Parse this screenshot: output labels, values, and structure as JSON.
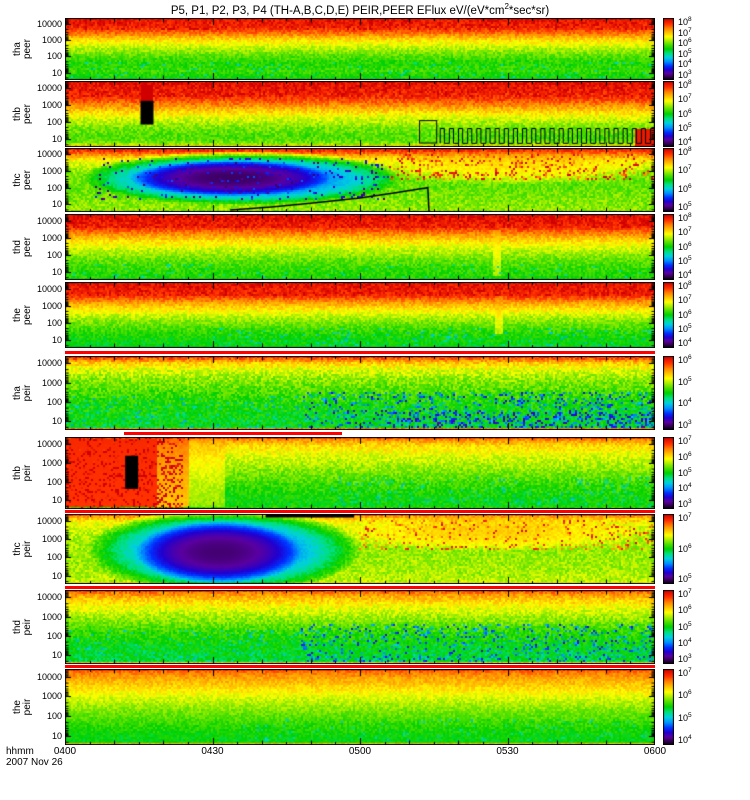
{
  "window": {
    "title_pre": "P5, P1, P2, P3, P4 (TH-A,B,C,D,E) PEIR,PEER EFlux eV/(eV*cm",
    "title_sup": "2",
    "title_post": "*sec*sr)"
  },
  "bottom": {
    "time_label": "hhmm",
    "date_label": "2007 Nov 26"
  },
  "chart_data": {
    "type": "heatmap",
    "title": "P5, P1, P2, P3, P4 (TH-A,B,C,D,E) PEIR,PEER EFlux eV/(eV*cm2*sec*sr)",
    "x_axis": {
      "labels": [
        "0400",
        "0430",
        "0500",
        "0530",
        "0600"
      ],
      "format": "hhmm",
      "date": "2007 Nov 26"
    },
    "y_axis": {
      "ticks": [
        "10000",
        "1000",
        "100",
        "10"
      ],
      "scale": "log"
    },
    "colorbar_base": "10",
    "colormap": [
      [
        0.0,
        "#000010"
      ],
      [
        0.04,
        "#30004a"
      ],
      [
        0.1,
        "#5a00a0"
      ],
      [
        0.16,
        "#2000d0"
      ],
      [
        0.22,
        "#0030ff"
      ],
      [
        0.29,
        "#0090ff"
      ],
      [
        0.36,
        "#00d0e0"
      ],
      [
        0.43,
        "#00e080"
      ],
      [
        0.5,
        "#00d000"
      ],
      [
        0.57,
        "#50e000"
      ],
      [
        0.64,
        "#b0f000"
      ],
      [
        0.7,
        "#ffff00"
      ],
      [
        0.77,
        "#ffc000"
      ],
      [
        0.84,
        "#ff8000"
      ],
      [
        0.91,
        "#ff3000"
      ],
      [
        1.0,
        "#d00000"
      ]
    ],
    "panels": [
      {
        "id": "tha-peer",
        "label_lines": [
          "tha",
          "peer"
        ],
        "colorbar_exponents": [
          8,
          7,
          6,
          5,
          4,
          3
        ],
        "noise": 0.045,
        "profile": [
          [
            0,
            0.96
          ],
          [
            0.15,
            0.93
          ],
          [
            0.25,
            0.85
          ],
          [
            0.35,
            0.74
          ],
          [
            0.48,
            0.65
          ],
          [
            0.6,
            0.58
          ],
          [
            0.72,
            0.53
          ],
          [
            0.85,
            0.55
          ],
          [
            1,
            0.5
          ]
        ],
        "features": [
          {
            "type": "speckle",
            "x0": 0,
            "x1": 1,
            "y0": 0,
            "y1": 0.18,
            "v": 1.0,
            "density": 0.25
          },
          {
            "type": "speckle",
            "x0": 0,
            "x1": 1,
            "y0": 0.72,
            "y1": 0.99,
            "v": 0.45,
            "density": 0.1
          }
        ]
      },
      {
        "id": "thb-peer",
        "label_lines": [
          "thb",
          "peer"
        ],
        "colorbar_exponents": [
          8,
          7,
          6,
          5,
          4
        ],
        "noise": 0.05,
        "profile": [
          [
            0,
            0.97
          ],
          [
            0.25,
            0.92
          ],
          [
            0.4,
            0.8
          ],
          [
            0.55,
            0.68
          ],
          [
            0.7,
            0.6
          ],
          [
            0.85,
            0.56
          ],
          [
            0.95,
            0.6
          ],
          [
            1,
            0.8
          ]
        ],
        "features": [
          {
            "type": "speckle",
            "x0": 0,
            "x1": 1,
            "y0": 0,
            "y1": 0.25,
            "v": 1.0,
            "density": 0.25
          },
          {
            "type": "rect",
            "x0": 0.128,
            "x1": 0.15,
            "y0": 0.05,
            "y1": 0.3,
            "v": 1.0
          },
          {
            "type": "rect",
            "x0": 0.965,
            "x1": 1,
            "y0": 0.72,
            "y1": 1,
            "v": 0.95
          },
          {
            "type": "bar",
            "x0": 0.128,
            "x1": 0.15,
            "y0": 0.3,
            "y1": 0.66,
            "color": "#000000"
          },
          {
            "type": "outline",
            "x0": 0.601,
            "x1": 0.63,
            "y0": 0.6,
            "y1": 0.94
          },
          {
            "type": "sqwave",
            "x0": 0.636,
            "x1": 0.998,
            "period": 0.0155,
            "duty": 0.45,
            "ytop": 0.72,
            "ybot": 0.945
          }
        ]
      },
      {
        "id": "thc-peer",
        "label_lines": [
          "thc",
          "peer"
        ],
        "colorbar_exponents": [
          8,
          7,
          6,
          5
        ],
        "noise": 0.05,
        "profile": [
          [
            0,
            0.95
          ],
          [
            0.06,
            0.9
          ],
          [
            0.13,
            0.78
          ],
          [
            0.22,
            0.68
          ],
          [
            0.4,
            0.6
          ],
          [
            0.6,
            0.58
          ],
          [
            0.8,
            0.6
          ],
          [
            1,
            0.62
          ]
        ],
        "features": [
          {
            "type": "blob",
            "cx": 0.3,
            "cy": 0.47,
            "rx": 0.27,
            "ry": 0.42,
            "v": 0.18,
            "alpha": 0.95
          },
          {
            "type": "blob",
            "cx": 0.28,
            "cy": 0.47,
            "rx": 0.17,
            "ry": 0.28,
            "v": 0.05,
            "alpha": 0.95
          },
          {
            "type": "blob",
            "cx": 0.76,
            "cy": 0.3,
            "rx": 0.24,
            "ry": 0.26,
            "v": 0.8,
            "alpha": 0.55
          },
          {
            "type": "speckle",
            "x0": 0.55,
            "x1": 1,
            "y0": 0.08,
            "y1": 0.5,
            "v": 0.9,
            "density": 0.18
          },
          {
            "type": "speckle",
            "x0": 0.05,
            "x1": 0.55,
            "y0": 0.15,
            "y1": 0.8,
            "v": 0.15,
            "density": 0.08
          },
          {
            "type": "trace",
            "pts": [
              [
                0.28,
                0.97
              ],
              [
                0.35,
                0.92
              ],
              [
                0.42,
                0.86
              ],
              [
                0.5,
                0.78
              ],
              [
                0.56,
                0.7
              ],
              [
                0.6,
                0.64
              ],
              [
                0.615,
                0.62
              ],
              [
                0.617,
                0.995
              ]
            ]
          }
        ]
      },
      {
        "id": "thd-peer",
        "label_lines": [
          "thd",
          "peer"
        ],
        "colorbar_exponents": [
          8,
          7,
          6,
          5,
          4
        ],
        "noise": 0.045,
        "profile": [
          [
            0,
            0.97
          ],
          [
            0.2,
            0.93
          ],
          [
            0.3,
            0.83
          ],
          [
            0.42,
            0.73
          ],
          [
            0.55,
            0.65
          ],
          [
            0.7,
            0.58
          ],
          [
            0.85,
            0.54
          ],
          [
            1,
            0.52
          ]
        ],
        "features": [
          {
            "type": "speckle",
            "x0": 0,
            "x1": 1,
            "y0": 0,
            "y1": 0.22,
            "v": 1.0,
            "density": 0.3
          },
          {
            "type": "rect",
            "x0": 0.725,
            "x1": 0.74,
            "y0": 0.25,
            "y1": 0.95,
            "v": 0.75,
            "alpha": 0.5
          },
          {
            "type": "speckle",
            "x0": 0,
            "x1": 1,
            "y0": 0.75,
            "y1": 0.99,
            "v": 0.47,
            "density": 0.08
          }
        ]
      },
      {
        "id": "the-peer",
        "label_lines": [
          "the",
          "peer"
        ],
        "colorbar_exponents": [
          8,
          7,
          6,
          5,
          4
        ],
        "noise": 0.045,
        "profile": [
          [
            0,
            0.96
          ],
          [
            0.2,
            0.93
          ],
          [
            0.3,
            0.82
          ],
          [
            0.42,
            0.72
          ],
          [
            0.55,
            0.63
          ],
          [
            0.7,
            0.56
          ],
          [
            0.85,
            0.51
          ],
          [
            1,
            0.49
          ]
        ],
        "features": [
          {
            "type": "speckle",
            "x0": 0,
            "x1": 1,
            "y0": 0,
            "y1": 0.2,
            "v": 1.0,
            "density": 0.25
          },
          {
            "type": "rect",
            "x0": 0.728,
            "x1": 0.742,
            "y0": 0.2,
            "y1": 0.8,
            "v": 0.78,
            "alpha": 0.45
          },
          {
            "type": "speckle",
            "x0": 0.25,
            "x1": 1,
            "y0": 0.7,
            "y1": 0.99,
            "v": 0.42,
            "density": 0.1
          }
        ]
      },
      {
        "id": "tha-peir",
        "label_lines": [
          "tha",
          "peir"
        ],
        "colorbar_exponents": [
          6,
          5,
          4,
          3
        ],
        "noise": 0.06,
        "profile": [
          [
            0,
            0.94
          ],
          [
            0.035,
            0.88
          ],
          [
            0.09,
            0.76
          ],
          [
            0.18,
            0.68
          ],
          [
            0.3,
            0.62
          ],
          [
            0.45,
            0.57
          ],
          [
            0.6,
            0.53
          ],
          [
            0.8,
            0.5
          ],
          [
            0.96,
            0.49
          ],
          [
            0.975,
            0.7
          ],
          [
            1,
            0.95
          ]
        ],
        "features": [
          {
            "type": "speckle",
            "x0": 0.4,
            "x1": 1,
            "y0": 0.5,
            "y1": 0.96,
            "v": 0.27,
            "density": 0.18
          },
          {
            "type": "speckle",
            "x0": 0,
            "x1": 0.4,
            "y0": 0.55,
            "y1": 0.96,
            "v": 0.4,
            "density": 0.1
          },
          {
            "type": "speckle",
            "x0": 0.55,
            "x1": 1,
            "y0": 0.75,
            "y1": 0.96,
            "v": 0.2,
            "density": 0.22
          }
        ]
      },
      {
        "id": "thb-peir",
        "label_lines": [
          "thb",
          "peir"
        ],
        "colorbar_exponents": [
          7,
          6,
          5,
          4,
          3
        ],
        "noise": 0.05,
        "profile": [
          [
            0,
            0.93
          ],
          [
            0.04,
            0.82
          ],
          [
            0.12,
            0.74
          ],
          [
            0.25,
            0.68
          ],
          [
            0.4,
            0.63
          ],
          [
            0.55,
            0.58
          ],
          [
            0.7,
            0.54
          ],
          [
            0.85,
            0.51
          ],
          [
            0.97,
            0.5
          ],
          [
            1,
            0.6
          ]
        ],
        "features": [
          {
            "type": "rect",
            "x0": 0,
            "x1": 0.155,
            "y0": 0.02,
            "y1": 0.98,
            "v": 0.93,
            "alpha": 0.95
          },
          {
            "type": "rect",
            "x0": 0.155,
            "x1": 0.21,
            "y0": 0.02,
            "y1": 0.98,
            "v": 0.88,
            "alpha": 0.7
          },
          {
            "type": "rect",
            "x0": 0.21,
            "x1": 0.27,
            "y0": 0.02,
            "y1": 0.98,
            "v": 0.8,
            "alpha": 0.4
          },
          {
            "type": "speckle",
            "x0": 0,
            "x1": 0.2,
            "y0": 0,
            "y1": 1,
            "v": 1.0,
            "density": 0.25
          },
          {
            "type": "speckle",
            "x0": 0.45,
            "x1": 1,
            "y0": 0.55,
            "y1": 0.97,
            "v": 0.42,
            "density": 0.12
          },
          {
            "type": "bar",
            "x0": 0.102,
            "x1": 0.124,
            "y0": 0.26,
            "y1": 0.72,
            "color": "#000000"
          }
        ]
      },
      {
        "id": "thc-peir",
        "label_lines": [
          "thc",
          "peir"
        ],
        "colorbar_exponents": [
          7,
          6,
          5
        ],
        "noise": 0.05,
        "profile": [
          [
            0,
            0.93
          ],
          [
            0.04,
            0.8
          ],
          [
            0.12,
            0.7
          ],
          [
            0.3,
            0.64
          ],
          [
            0.55,
            0.62
          ],
          [
            0.8,
            0.63
          ],
          [
            0.97,
            0.65
          ],
          [
            1,
            0.75
          ]
        ],
        "features": [
          {
            "type": "blob",
            "cx": 0.27,
            "cy": 0.52,
            "rx": 0.23,
            "ry": 0.62,
            "v": 0.2,
            "alpha": 0.95
          },
          {
            "type": "blob",
            "cx": 0.26,
            "cy": 0.55,
            "rx": 0.14,
            "ry": 0.45,
            "v": 0.06,
            "alpha": 0.95
          },
          {
            "type": "blob",
            "cx": 0.72,
            "cy": 0.28,
            "rx": 0.26,
            "ry": 0.24,
            "v": 0.82,
            "alpha": 0.6
          },
          {
            "type": "speckle",
            "x0": 0.5,
            "x1": 1,
            "y0": 0.08,
            "y1": 0.5,
            "v": 0.88,
            "density": 0.15
          },
          {
            "type": "bar",
            "x0": 0.34,
            "x1": 0.49,
            "y0": 0,
            "y1": 0.05,
            "color": "#000000"
          }
        ]
      },
      {
        "id": "thd-peir",
        "label_lines": [
          "thd",
          "peir"
        ],
        "colorbar_exponents": [
          7,
          6,
          5,
          4,
          3
        ],
        "noise": 0.05,
        "profile": [
          [
            0,
            0.93
          ],
          [
            0.04,
            0.84
          ],
          [
            0.1,
            0.78
          ],
          [
            0.22,
            0.7
          ],
          [
            0.38,
            0.62
          ],
          [
            0.55,
            0.55
          ],
          [
            0.75,
            0.5
          ],
          [
            0.96,
            0.47
          ],
          [
            1,
            0.9
          ]
        ],
        "features": [
          {
            "type": "speckle",
            "x0": 0.4,
            "x1": 1,
            "y0": 0.45,
            "y1": 0.96,
            "v": 0.28,
            "density": 0.18
          },
          {
            "type": "speckle",
            "x0": 0,
            "x1": 0.4,
            "y0": 0.55,
            "y1": 0.96,
            "v": 0.42,
            "density": 0.1
          }
        ]
      },
      {
        "id": "the-peir",
        "label_lines": [
          "the",
          "peir"
        ],
        "colorbar_exponents": [
          7,
          6,
          5,
          4
        ],
        "noise": 0.04,
        "profile": [
          [
            0,
            0.93
          ],
          [
            0.04,
            0.85
          ],
          [
            0.12,
            0.8
          ],
          [
            0.25,
            0.74
          ],
          [
            0.4,
            0.66
          ],
          [
            0.55,
            0.6
          ],
          [
            0.7,
            0.55
          ],
          [
            0.85,
            0.51
          ],
          [
            0.96,
            0.49
          ],
          [
            1,
            0.9
          ]
        ],
        "features": [
          {
            "type": "speckle",
            "x0": 0.3,
            "x1": 1,
            "y0": 0.65,
            "y1": 0.96,
            "v": 0.44,
            "density": 0.08
          }
        ]
      }
    ],
    "separators": [
      {
        "above_panel_index": 5,
        "x0": 0,
        "x1": 1
      },
      {
        "above_panel_index": 6,
        "x0": 0.1,
        "x1": 0.47
      },
      {
        "above_panel_index": 7,
        "x0": 0,
        "x1": 1
      },
      {
        "above_panel_index": 8,
        "x0": 0,
        "x1": 1
      },
      {
        "above_panel_index": 9,
        "x0": 0,
        "x1": 1
      }
    ]
  }
}
